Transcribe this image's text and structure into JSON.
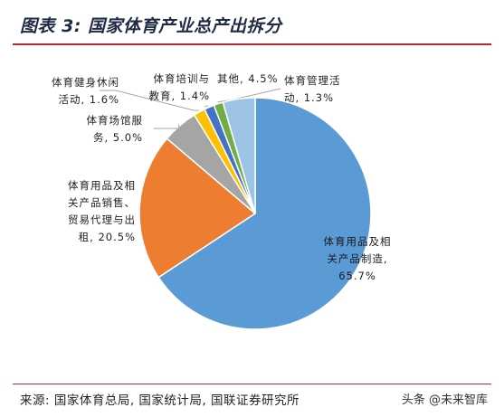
{
  "header": {
    "title": "图表 3: 国家体育产业总产出拆分"
  },
  "footer": {
    "source": "来源: 国家体育总局, 国家统计局, 国联证券研究所",
    "watermark": "头条 @未来智库"
  },
  "chart_data": {
    "type": "pie",
    "title": "图表 3: 国家体育产业总产出拆分",
    "slices": [
      {
        "label": "体育用品及相关产品制造",
        "value": 65.7,
        "text": "体育用品及相\n关产品制造,\n65.7%",
        "color": "#5b9bd5"
      },
      {
        "label": "体育用品及相关产品销售、贸易代理与出租",
        "value": 20.5,
        "text": "体育用品及相\n关产品销售、\n贸易代理与出\n租, 20.5%",
        "color": "#ed7d31"
      },
      {
        "label": "体育场馆服务",
        "value": 5.0,
        "text": "体育场馆服\n务, 5.0%",
        "color": "#a5a5a5"
      },
      {
        "label": "体育健身休闲活动",
        "value": 1.6,
        "text": "体育健身休闲\n活动, 1.6%",
        "color": "#ffc000"
      },
      {
        "label": "体育培训与教育",
        "value": 1.4,
        "text": "体育培训与\n教育, 1.4%",
        "color": "#4472c4"
      },
      {
        "label": "体育管理活动",
        "value": 1.3,
        "text": "体育管理活\n动, 1.3%",
        "color": "#70ad47"
      },
      {
        "label": "其他",
        "value": 4.5,
        "text": "其他, 4.5%",
        "color": "#9dc3e6"
      }
    ]
  }
}
